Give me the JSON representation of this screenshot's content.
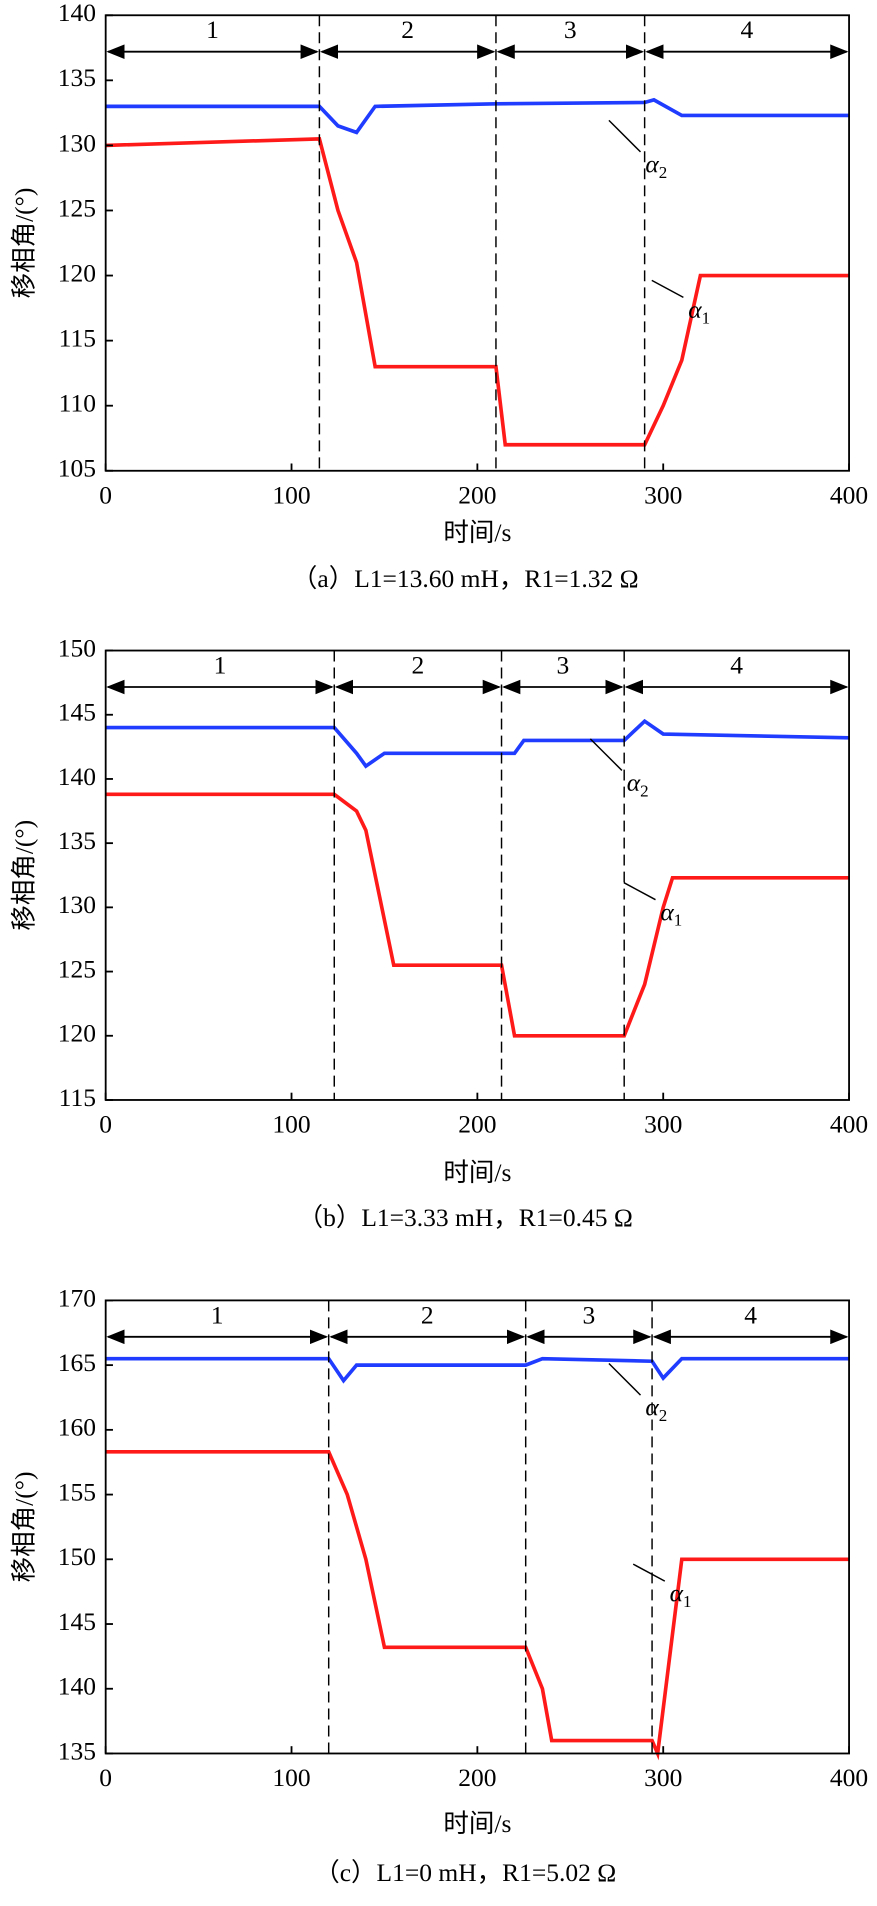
{
  "chart_data": [
    {
      "type": "line",
      "caption": "（a）L1=13.60 mH，R1=1.32 Ω",
      "xlabel": "时间/s",
      "ylabel": "移相角/(°)",
      "xlim": [
        0,
        400
      ],
      "xticks": [
        0,
        100,
        200,
        300,
        400
      ],
      "ylim": [
        105,
        140
      ],
      "yticks": [
        105,
        110,
        115,
        120,
        125,
        130,
        135,
        140
      ],
      "phase_boundaries": [
        115,
        210,
        290
      ],
      "phase_labels": [
        "1",
        "2",
        "3",
        "4"
      ],
      "series": [
        {
          "name": "α2",
          "color": "#1f3cff",
          "x": [
            0,
            115,
            125,
            135,
            145,
            210,
            290,
            295,
            310,
            400
          ],
          "values": [
            133,
            133,
            131.5,
            131,
            133,
            133.2,
            133.3,
            133.5,
            132.3,
            132.3
          ]
        },
        {
          "name": "α1",
          "color": "#ff1a1a",
          "x": [
            0,
            115,
            125,
            135,
            145,
            210,
            215,
            290,
            300,
            310,
            320,
            400
          ],
          "values": [
            130,
            130.5,
            125,
            121,
            113,
            113,
            107,
            107,
            110,
            113.5,
            120,
            120
          ]
        }
      ]
    },
    {
      "type": "line",
      "caption": "（b）L1=3.33 mH，R1=0.45 Ω",
      "xlabel": "时间/s",
      "ylabel": "移相角/(°)",
      "xlim": [
        0,
        400
      ],
      "xticks": [
        0,
        100,
        200,
        300,
        400
      ],
      "ylim": [
        115,
        150
      ],
      "yticks": [
        115,
        120,
        125,
        130,
        135,
        140,
        145,
        150
      ],
      "phase_boundaries": [
        123,
        213,
        279
      ],
      "phase_labels": [
        "1",
        "2",
        "3",
        "4"
      ],
      "series": [
        {
          "name": "α2",
          "color": "#1f3cff",
          "x": [
            0,
            123,
            135,
            140,
            150,
            213,
            220,
            225,
            279,
            290,
            300,
            400
          ],
          "values": [
            144,
            144,
            142,
            141,
            142,
            142,
            142,
            143,
            143,
            144.5,
            143.5,
            143.2
          ]
        },
        {
          "name": "α1",
          "color": "#ff1a1a",
          "x": [
            0,
            123,
            135,
            140,
            155,
            213,
            220,
            279,
            290,
            300,
            305,
            400
          ],
          "values": [
            138.8,
            138.8,
            137.5,
            136,
            125.5,
            125.5,
            120,
            120,
            124,
            130,
            132.3,
            132.3
          ]
        }
      ]
    },
    {
      "type": "line",
      "caption": "（c）L1=0 mH，R1=5.02 Ω",
      "xlabel": "时间/s",
      "ylabel": "移相角/(°)",
      "xlim": [
        0,
        400
      ],
      "xticks": [
        0,
        100,
        200,
        300,
        400
      ],
      "ylim": [
        135,
        170
      ],
      "yticks": [
        135,
        140,
        145,
        150,
        155,
        160,
        165,
        170
      ],
      "phase_boundaries": [
        120,
        226,
        294
      ],
      "phase_labels": [
        "1",
        "2",
        "3",
        "4"
      ],
      "series": [
        {
          "name": "α2",
          "color": "#1f3cff",
          "x": [
            0,
            120,
            128,
            135,
            226,
            235,
            294,
            300,
            310,
            400
          ],
          "values": [
            165.5,
            165.5,
            163.8,
            165,
            165,
            165.5,
            165.3,
            164,
            165.5,
            165.5
          ]
        },
        {
          "name": "α1",
          "color": "#ff1a1a",
          "x": [
            0,
            120,
            130,
            140,
            150,
            226,
            235,
            240,
            294,
            297,
            310,
            400
          ],
          "values": [
            158.3,
            158.3,
            155,
            150,
            143.2,
            143.2,
            140,
            136,
            136,
            135,
            150,
            150
          ]
        }
      ]
    }
  ]
}
